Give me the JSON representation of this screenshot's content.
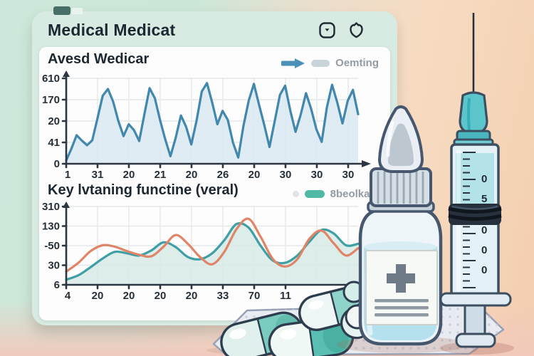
{
  "window": {
    "title": "Medical Medicat"
  },
  "header": {
    "icons": [
      {
        "name": "widget-dropdown-icon"
      },
      {
        "name": "shield-refresh-icon"
      }
    ]
  },
  "colors": {
    "chart_blue": "#4187ae",
    "chart_blue_fill": "#dbe9f2",
    "chart_teal": "#3f9fa4",
    "chart_teal_fill": "#d6eae6",
    "chart_orange": "#e08467",
    "legend_gray_pill": "#c9d3da",
    "legend_teal_pill": "#52b9a5",
    "card_mint": "#d8ebe2",
    "background_mint": "#cde8da",
    "background_peach": "#f3ceb0"
  },
  "chart_data": [
    {
      "type": "line",
      "name": "avesd-wedicar",
      "title": "Avesd Wedicar",
      "legend": {
        "position": "top-right",
        "entries": [
          {
            "label": "Oemting",
            "marker": "blue-arrow-and-gray-pill"
          }
        ]
      },
      "y_ticks": [
        "610",
        "170",
        "20",
        "41",
        "0"
      ],
      "x_ticks": [
        "1",
        "31",
        "20",
        "21",
        "20",
        "26",
        "20",
        "30",
        "30",
        "30"
      ],
      "grid": true,
      "value_range": [
        0,
        200
      ],
      "series": [
        {
          "name": "Oemting",
          "color": "#4187ae",
          "fill": "#dbe9f2",
          "values": [
            8,
            36,
            68,
            55,
            44,
            56,
            108,
            162,
            178,
            148,
            102,
            66,
            94,
            80,
            54,
            118,
            180,
            156,
            104,
            58,
            18,
            62,
            115,
            88,
            46,
            102,
            172,
            192,
            146,
            94,
            126,
            104,
            50,
            15,
            90,
            150,
            190,
            140,
            92,
            40,
            102,
            164,
            186,
            126,
            76,
            118,
            168,
            130,
            82,
            52,
            134,
            188,
            146,
            96,
            150,
            176,
            118
          ]
        }
      ]
    },
    {
      "type": "line",
      "name": "key-lvtaning",
      "title": "Key lvtaning functine (veral)",
      "legend": {
        "position": "top-right",
        "entries": [
          {
            "label": "8beolkaic",
            "marker": "teal-pill"
          }
        ]
      },
      "y_ticks": [
        "310",
        "130",
        "-50",
        "30",
        "6"
      ],
      "x_ticks": [
        "4",
        "20",
        "20",
        "20",
        "20",
        "33",
        "70",
        "11"
      ],
      "grid": true,
      "value_range": [
        0,
        210
      ],
      "series": [
        {
          "name": "8beolkaic",
          "color": "#3f9fa4",
          "fill": "#d6eae6",
          "values": [
            14,
            26,
            48,
            72,
            90,
            86,
            80,
            94,
            116,
            103,
            76,
            70,
            86,
            122,
            166,
            156,
            106,
            66,
            60,
            80,
            118,
            150,
            140,
            108,
            112
          ]
        },
        {
          "name": "unlabeled-orange",
          "color": "#e08467",
          "values": [
            36,
            60,
            92,
            108,
            104,
            92,
            82,
            78,
            104,
            136,
            112,
            76,
            56,
            90,
            152,
            180,
            130,
            70,
            50,
            70,
            126,
            148,
            113,
            80,
            100
          ]
        }
      ]
    }
  ],
  "illustration": {
    "syringe_scale": [
      "0",
      "5",
      "0",
      "0",
      "0"
    ]
  }
}
